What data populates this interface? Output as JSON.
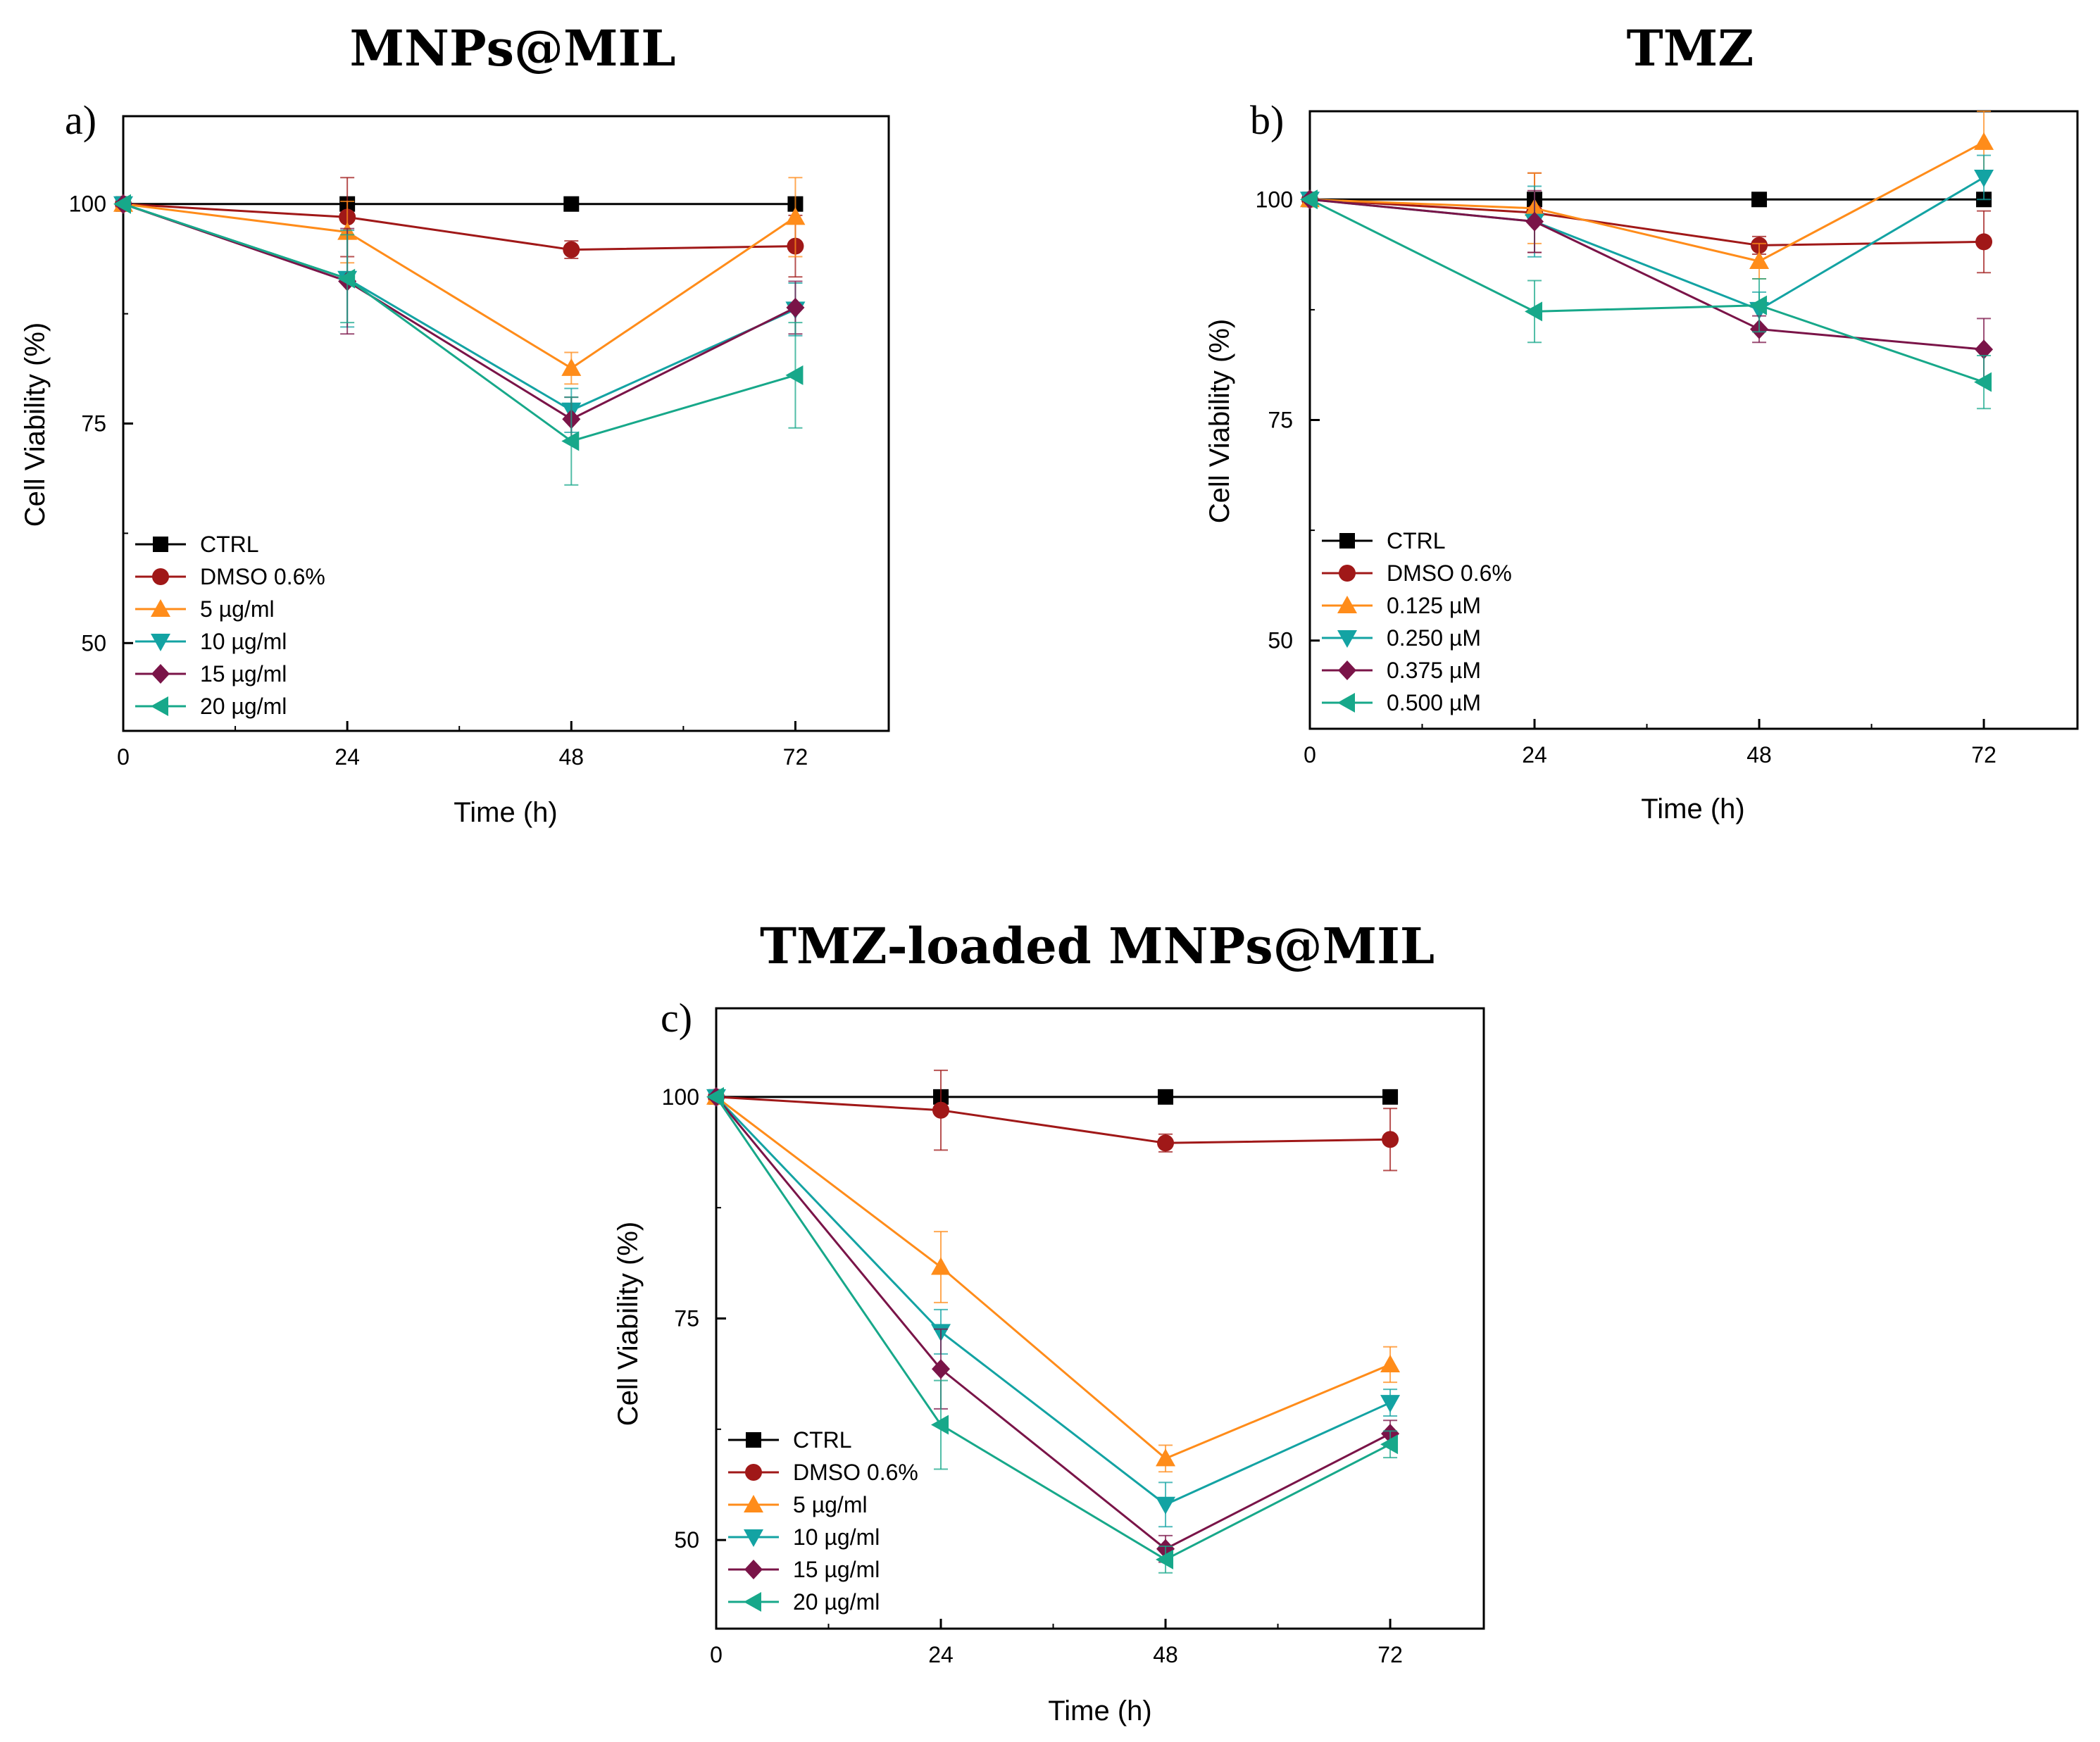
{
  "chart_data": [
    {
      "id": "a",
      "type": "line",
      "panel_label": "a)",
      "title": "MNPs@MIL",
      "xlabel": "Time (h)",
      "ylabel": "Cell Viability (%)",
      "xlim": [
        0,
        82
      ],
      "ylim": [
        40,
        110
      ],
      "xticks": [
        0,
        24,
        48,
        72
      ],
      "yticks": [
        50,
        75,
        100
      ],
      "legend_position": "bottom-left",
      "x": [
        0,
        24,
        48,
        72
      ],
      "series": [
        {
          "name": "CTRL",
          "marker": "square",
          "color": "#000000",
          "values": [
            100,
            100,
            100,
            100
          ],
          "errors": [
            0,
            0,
            0,
            0
          ]
        },
        {
          "name": "DMSO 0.6%",
          "marker": "circle",
          "color": "#a01818",
          "values": [
            100,
            98.5,
            94.8,
            95.2
          ],
          "errors": [
            0,
            4.5,
            1.0,
            3.5
          ]
        },
        {
          "name": "5 µg/ml",
          "marker": "triangle-up",
          "color": "#ff8c1a",
          "values": [
            100,
            96.8,
            81.3,
            98.5
          ],
          "errors": [
            0,
            3.5,
            1.8,
            4.5
          ]
        },
        {
          "name": "10 µg/ml",
          "marker": "triangle-down",
          "color": "#13a3a3",
          "values": [
            100,
            91.5,
            76.5,
            88.0
          ],
          "errors": [
            0,
            5.5,
            2.5,
            3.0
          ]
        },
        {
          "name": "15 µg/ml",
          "marker": "diamond",
          "color": "#7a1448",
          "values": [
            100,
            91.2,
            75.5,
            88.2
          ],
          "errors": [
            0,
            6.0,
            2.5,
            3.0
          ]
        },
        {
          "name": "20 µg/ml",
          "marker": "triangle-left",
          "color": "#17a88a",
          "values": [
            100,
            91.5,
            73.0,
            80.5
          ],
          "errors": [
            0,
            5.0,
            5.0,
            6.0
          ]
        }
      ]
    },
    {
      "id": "b",
      "type": "line",
      "panel_label": "b)",
      "title": "TMZ",
      "xlabel": "Time (h)",
      "ylabel": "Cell Viability (%)",
      "xlim": [
        0,
        82
      ],
      "ylim": [
        40,
        110
      ],
      "xticks": [
        0,
        24,
        48,
        72
      ],
      "yticks": [
        50,
        75,
        100
      ],
      "legend_position": "bottom-left",
      "x": [
        0,
        24,
        48,
        72
      ],
      "series": [
        {
          "name": "CTRL",
          "marker": "square",
          "color": "#000000",
          "values": [
            100,
            100,
            100,
            100
          ],
          "errors": [
            0,
            0,
            0,
            0
          ]
        },
        {
          "name": "DMSO 0.6%",
          "marker": "circle",
          "color": "#a01818",
          "values": [
            100,
            98.5,
            94.8,
            95.2
          ],
          "errors": [
            0,
            4.5,
            1.0,
            3.5
          ]
        },
        {
          "name": "0.125 µM",
          "marker": "triangle-up",
          "color": "#ff8c1a",
          "values": [
            100,
            99.0,
            93.0,
            106.5
          ],
          "errors": [
            0,
            4.0,
            2.0,
            3.5
          ]
        },
        {
          "name": "0.250 µM",
          "marker": "triangle-down",
          "color": "#13a3a3",
          "values": [
            100,
            97.5,
            87.5,
            102.5
          ],
          "errors": [
            0,
            4.0,
            2.0,
            2.5
          ]
        },
        {
          "name": "0.375 µM",
          "marker": "diamond",
          "color": "#7a1448",
          "values": [
            100,
            97.5,
            85.3,
            83.0
          ],
          "errors": [
            0,
            3.5,
            1.5,
            3.5
          ]
        },
        {
          "name": "0.500 µM",
          "marker": "triangle-left",
          "color": "#17a88a",
          "values": [
            100,
            87.3,
            88.0,
            79.3
          ],
          "errors": [
            0,
            3.5,
            3.0,
            3.0
          ]
        }
      ]
    },
    {
      "id": "c",
      "type": "line",
      "panel_label": "c)",
      "title": "TMZ-loaded MNPs@MIL",
      "xlabel": "Time (h)",
      "ylabel": "Cell Viability (%)",
      "xlim": [
        0,
        82
      ],
      "ylim": [
        40,
        110
      ],
      "xticks": [
        0,
        24,
        48,
        72
      ],
      "yticks": [
        50,
        75,
        100
      ],
      "legend_position": "bottom-left",
      "x": [
        0,
        24,
        48,
        72
      ],
      "series": [
        {
          "name": "CTRL",
          "marker": "square",
          "color": "#000000",
          "values": [
            100,
            100,
            100,
            100
          ],
          "errors": [
            0,
            0,
            0,
            0
          ]
        },
        {
          "name": "DMSO 0.6%",
          "marker": "circle",
          "color": "#a01818",
          "values": [
            100,
            98.5,
            94.8,
            95.2
          ],
          "errors": [
            0,
            4.5,
            1.0,
            3.5
          ]
        },
        {
          "name": "5 µg/ml",
          "marker": "triangle-up",
          "color": "#ff8c1a",
          "values": [
            100,
            80.8,
            59.2,
            69.8
          ],
          "errors": [
            0,
            4.0,
            1.5,
            2.0
          ]
        },
        {
          "name": "10 µg/ml",
          "marker": "triangle-down",
          "color": "#13a3a3",
          "values": [
            100,
            73.5,
            54.0,
            65.5
          ],
          "errors": [
            0,
            2.5,
            2.5,
            1.5
          ]
        },
        {
          "name": "15 µg/ml",
          "marker": "diamond",
          "color": "#7a1448",
          "values": [
            100,
            69.3,
            49.0,
            62.0
          ],
          "errors": [
            0,
            4.5,
            1.5,
            1.5
          ]
        },
        {
          "name": "20 µg/ml",
          "marker": "triangle-left",
          "color": "#17a88a",
          "values": [
            100,
            63.0,
            47.8,
            60.8
          ],
          "errors": [
            0,
            5.0,
            1.5,
            1.5
          ]
        }
      ]
    }
  ]
}
